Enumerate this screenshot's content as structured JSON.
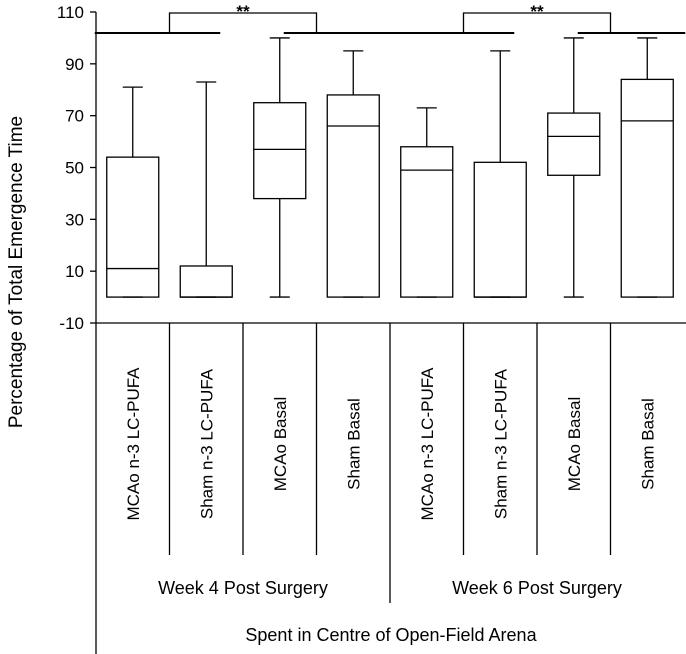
{
  "chart_data": {
    "type": "box",
    "ylabel": "Percentage of Total Emergence Time",
    "xlabel": "Spent in Centre of Open-Field Arena",
    "ylim": [
      -10,
      110
    ],
    "yticks": [
      110,
      90,
      70,
      50,
      30,
      10,
      -10
    ],
    "grid": false,
    "groups": [
      "Week 4 Post Surgery",
      "Week 6 Post Surgery"
    ],
    "categories": [
      "MCAo n-3 LC-PUFA",
      "Sham n-3 LC-PUFA",
      "MCAo Basal",
      "Sham Basal",
      "MCAo n-3 LC-PUFA",
      "Sham n-3 LC-PUFA",
      "MCAo Basal",
      "Sham Basal"
    ],
    "boxes": [
      {
        "group": "Week 4 Post Surgery",
        "label": "MCAo n-3 LC-PUFA",
        "min": 0,
        "q1": 0,
        "median": 11,
        "q3": 54,
        "max": 81
      },
      {
        "group": "Week 4 Post Surgery",
        "label": "Sham n-3 LC-PUFA",
        "min": 0,
        "q1": 0,
        "median": 0,
        "q3": 12,
        "max": 83
      },
      {
        "group": "Week 4 Post Surgery",
        "label": "MCAo Basal",
        "min": 0,
        "q1": 38,
        "median": 57,
        "q3": 75,
        "max": 100
      },
      {
        "group": "Week 4 Post Surgery",
        "label": "Sham Basal",
        "min": 0,
        "q1": 0,
        "median": 66,
        "q3": 78,
        "max": 95
      },
      {
        "group": "Week 6 Post Surgery",
        "label": "MCAo n-3 LC-PUFA",
        "min": 0,
        "q1": 0,
        "median": 49,
        "q3": 58,
        "max": 73
      },
      {
        "group": "Week 6 Post Surgery",
        "label": "Sham n-3 LC-PUFA",
        "min": 0,
        "q1": 0,
        "median": 0,
        "q3": 52,
        "max": 95
      },
      {
        "group": "Week 6 Post Surgery",
        "label": "MCAo Basal",
        "min": 0,
        "q1": 47,
        "median": 62,
        "q3": 71,
        "max": 100
      },
      {
        "group": "Week 6 Post Surgery",
        "label": "Sham Basal",
        "min": 0,
        "q1": 0,
        "median": 68,
        "q3": 84,
        "max": 100
      }
    ],
    "significance": [
      {
        "group": "Week 4 Post Surgery",
        "label": "**"
      },
      {
        "group": "Week 6 Post Surgery",
        "label": "**"
      }
    ]
  }
}
